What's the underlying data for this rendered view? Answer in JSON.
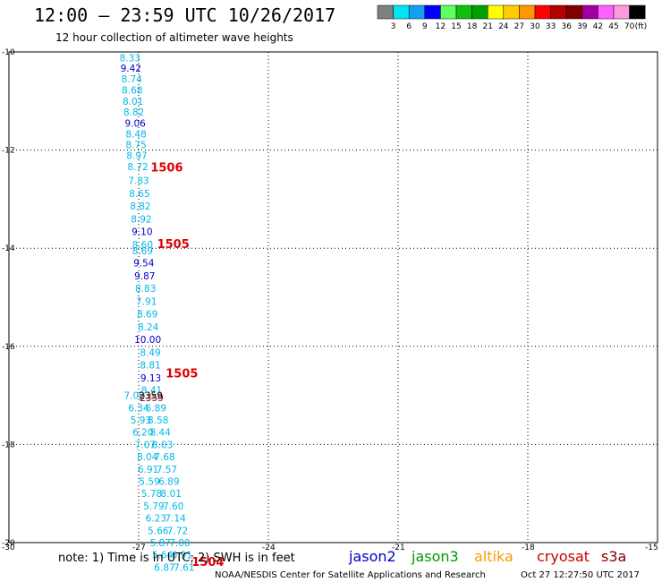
{
  "header": {
    "title": "12:00 – 23:59 UTC 10/26/2017",
    "subtitle": "12 hour collection of altimeter wave heights"
  },
  "colorbar": {
    "labels": [
      "3",
      "6",
      "9",
      "12",
      "15",
      "18",
      "21",
      "24",
      "27",
      "30",
      "33",
      "36",
      "39",
      "42",
      "45",
      "70"
    ],
    "unit": "(ft)",
    "colors": [
      "#808080",
      "#00e5f0",
      "#14a0f0",
      "#0000ff",
      "#60ff60",
      "#10c010",
      "#00a000",
      "#ffff00",
      "#ffcc00",
      "#ff9900",
      "#ff0000",
      "#b00000",
      "#800000",
      "#a000a0",
      "#ff60ff",
      "#ff99dd",
      "#000000"
    ]
  },
  "footer": {
    "note": "note: 1) Time is in UTC; 2) SWH is in feet",
    "satellites": [
      {
        "name": "jason2",
        "color": "#0000cc"
      },
      {
        "name": "jason3",
        "color": "#009900"
      },
      {
        "name": "altika",
        "color": "#ff9900"
      },
      {
        "name": "cryosat",
        "color": "#cc0000"
      },
      {
        "name": "s3a",
        "color": "#800000"
      }
    ],
    "credit": "NOAA/NESDIS Center for Satellite Applications and Research",
    "timestamp": "Oct 27 12:27:50 UTC 2017"
  },
  "chart_data": {
    "type": "scatter",
    "title": "12:00 – 23:59 UTC 10/26/2017",
    "subtitle": "12 hour collection of altimeter wave heights",
    "xlabel": "",
    "ylabel": "",
    "x_ticks": [
      "-30",
      "-27",
      "-24",
      "-21",
      "-18",
      "-15"
    ],
    "y_ticks": [
      "-10",
      "-12",
      "-14",
      "-16",
      "-18",
      "-20"
    ],
    "xlim": [
      -30,
      -15
    ],
    "ylim": [
      -20,
      -10
    ],
    "grid": true,
    "points": [
      {
        "x": -27.2,
        "y": -10.12,
        "v": "8.33",
        "c": "#00b8e8"
      },
      {
        "x": -27.18,
        "y": -10.33,
        "v": "9.42",
        "c": "#0000cc"
      },
      {
        "x": -27.16,
        "y": -10.55,
        "v": "8.74",
        "c": "#00b8e8"
      },
      {
        "x": -27.15,
        "y": -10.78,
        "v": "8.68",
        "c": "#00b8e8"
      },
      {
        "x": -27.13,
        "y": -11.0,
        "v": "8.01",
        "c": "#00b8e8"
      },
      {
        "x": -27.11,
        "y": -11.22,
        "v": "8.82",
        "c": "#00b8e8"
      },
      {
        "x": -27.08,
        "y": -11.45,
        "v": "9.06",
        "c": "#0000cc"
      },
      {
        "x": -27.06,
        "y": -11.67,
        "v": "8.48",
        "c": "#00b8e8"
      },
      {
        "x": -27.06,
        "y": -11.89,
        "v": "8.75",
        "c": "#00b8e8"
      },
      {
        "x": -27.04,
        "y": -12.11,
        "v": "8.97",
        "c": "#00b8e8"
      },
      {
        "x": -27.02,
        "y": -12.34,
        "v": "8.72",
        "c": "#00b8e8"
      },
      {
        "x": -27.0,
        "y": -12.62,
        "v": "7.83",
        "c": "#00b8e8"
      },
      {
        "x": -26.98,
        "y": -12.88,
        "v": "8.65",
        "c": "#00b8e8"
      },
      {
        "x": -26.96,
        "y": -13.14,
        "v": "8.82",
        "c": "#00b8e8"
      },
      {
        "x": -26.94,
        "y": -13.4,
        "v": "8.92",
        "c": "#00b8e8"
      },
      {
        "x": -26.92,
        "y": -13.66,
        "v": "9.10",
        "c": "#0000cc"
      },
      {
        "x": -26.91,
        "y": -13.92,
        "v": "8.60",
        "c": "#00b8e8"
      },
      {
        "x": -26.91,
        "y": -14.05,
        "v": "8.69",
        "c": "#00b8e8"
      },
      {
        "x": -26.88,
        "y": -14.3,
        "v": "9.54",
        "c": "#0000cc"
      },
      {
        "x": -26.86,
        "y": -14.56,
        "v": "9.87",
        "c": "#0000cc"
      },
      {
        "x": -26.84,
        "y": -14.82,
        "v": "8.83",
        "c": "#00b8e8"
      },
      {
        "x": -26.82,
        "y": -15.08,
        "v": "7.91",
        "c": "#00b8e8"
      },
      {
        "x": -26.8,
        "y": -15.34,
        "v": "8.69",
        "c": "#00b8e8"
      },
      {
        "x": -26.78,
        "y": -15.6,
        "v": "8.24",
        "c": "#00b8e8"
      },
      {
        "x": -26.79,
        "y": -15.86,
        "v": "10.00",
        "c": "#0000cc"
      },
      {
        "x": -26.73,
        "y": -16.12,
        "v": "8.49",
        "c": "#00b8e8"
      },
      {
        "x": -26.73,
        "y": -16.38,
        "v": "8.81",
        "c": "#00b8e8"
      },
      {
        "x": -26.72,
        "y": -16.64,
        "v": "9.13",
        "c": "#0000cc"
      },
      {
        "x": -26.7,
        "y": -16.89,
        "v": "8.41",
        "c": "#00b8e8"
      },
      {
        "x": -27.1,
        "y": -17.0,
        "v": "7.09",
        "c": "#00b8e8"
      },
      {
        "x": -27.0,
        "y": -17.25,
        "v": "6.34",
        "c": "#00b8e8"
      },
      {
        "x": -26.95,
        "y": -17.5,
        "v": "5.93",
        "c": "#00b8e8"
      },
      {
        "x": -26.9,
        "y": -17.75,
        "v": "6.20",
        "c": "#00b8e8"
      },
      {
        "x": -26.85,
        "y": -18.0,
        "v": "7.07",
        "c": "#00b8e8"
      },
      {
        "x": -26.8,
        "y": -18.25,
        "v": "8.04",
        "c": "#00b8e8"
      },
      {
        "x": -26.78,
        "y": -18.5,
        "v": "6.91",
        "c": "#00b8e8"
      },
      {
        "x": -26.75,
        "y": -18.75,
        "v": "5.59",
        "c": "#00b8e8"
      },
      {
        "x": -26.7,
        "y": -19.0,
        "v": "5.78",
        "c": "#00b8e8"
      },
      {
        "x": -26.65,
        "y": -19.25,
        "v": "5.79",
        "c": "#00b8e8"
      },
      {
        "x": -26.6,
        "y": -19.5,
        "v": "6.23",
        "c": "#00b8e8"
      },
      {
        "x": -26.55,
        "y": -19.75,
        "v": "5.66",
        "c": "#00b8e8"
      },
      {
        "x": -26.5,
        "y": -20.0,
        "v": "5.87",
        "c": "#00b8e8"
      },
      {
        "x": -26.45,
        "y": -20.25,
        "v": "5.64",
        "c": "#00b8e8"
      },
      {
        "x": -26.4,
        "y": -20.5,
        "v": "6.87",
        "c": "#00b8e8"
      },
      {
        "x": -26.6,
        "y": -17.25,
        "v": "6.89",
        "c": "#00b8e8"
      },
      {
        "x": -26.55,
        "y": -17.5,
        "v": "8.58",
        "c": "#00b8e8"
      },
      {
        "x": -26.5,
        "y": -17.75,
        "v": "8.44",
        "c": "#00b8e8"
      },
      {
        "x": -26.45,
        "y": -18.0,
        "v": "8.03",
        "c": "#00b8e8"
      },
      {
        "x": -26.4,
        "y": -18.25,
        "v": "7.68",
        "c": "#00b8e8"
      },
      {
        "x": -26.35,
        "y": -18.5,
        "v": "7.57",
        "c": "#00b8e8"
      },
      {
        "x": -26.3,
        "y": -18.75,
        "v": "6.89",
        "c": "#00b8e8"
      },
      {
        "x": -26.25,
        "y": -19.0,
        "v": "8.01",
        "c": "#00b8e8"
      },
      {
        "x": -26.2,
        "y": -19.25,
        "v": "7.60",
        "c": "#00b8e8"
      },
      {
        "x": -26.15,
        "y": -19.5,
        "v": "7.14",
        "c": "#00b8e8"
      },
      {
        "x": -26.1,
        "y": -19.75,
        "v": "7.72",
        "c": "#00b8e8"
      },
      {
        "x": -26.05,
        "y": -20.0,
        "v": "7.00",
        "c": "#00b8e8"
      },
      {
        "x": -26.0,
        "y": -20.25,
        "v": "6.91",
        "c": "#00b8e8"
      },
      {
        "x": -25.95,
        "y": -20.5,
        "v": "7.61",
        "c": "#00b8e8"
      },
      {
        "x": -26.72,
        "y": -17.0,
        "v": "2359",
        "c": "#000000"
      },
      {
        "x": -26.7,
        "y": -17.04,
        "v": "2359",
        "c": "#800000"
      }
    ],
    "time_labels": [
      {
        "x": -26.35,
        "y": -12.36,
        "t": "1506"
      },
      {
        "x": -26.2,
        "y": -13.92,
        "t": "1505"
      },
      {
        "x": -26.0,
        "y": -16.56,
        "t": "1505"
      },
      {
        "x": -25.4,
        "y": -20.4,
        "t": "1504"
      }
    ]
  }
}
